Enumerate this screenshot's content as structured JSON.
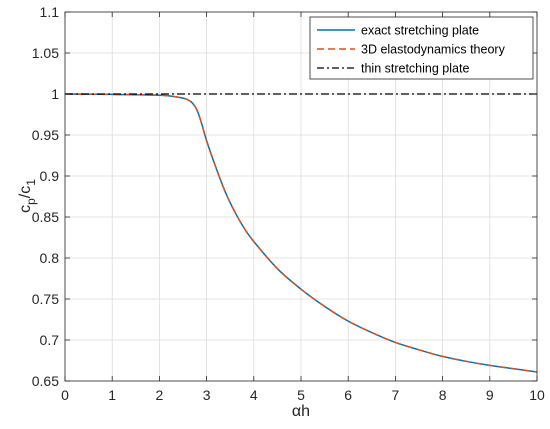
{
  "chart_data": {
    "type": "line",
    "xlabel": "αh",
    "ylabel": {
      "base": "c",
      "sub1": "p",
      "mid": "/c",
      "sub2": "1"
    },
    "xlim": [
      0,
      10
    ],
    "ylim": [
      0.65,
      1.1
    ],
    "xticks": [
      0,
      1,
      2,
      3,
      4,
      5,
      6,
      7,
      8,
      9,
      10
    ],
    "yticks": [
      0.65,
      0.7,
      0.75,
      0.8,
      0.85,
      0.9,
      0.95,
      1,
      1.05,
      1.1
    ],
    "xtick_labels": [
      "0",
      "1",
      "2",
      "3",
      "4",
      "5",
      "6",
      "7",
      "8",
      "9",
      "10"
    ],
    "ytick_labels": [
      "0.65",
      "0.7",
      "0.75",
      "0.8",
      "0.85",
      "0.9",
      "0.95",
      "1",
      "1.05",
      "1.1"
    ],
    "grid": true,
    "legend_position": "top-right",
    "series": [
      {
        "name": "exact stretching plate",
        "color": "#0072BD",
        "style": "solid",
        "x": [
          0,
          1,
          2,
          2.3,
          2.5,
          2.6,
          2.7,
          2.8,
          2.9,
          3,
          3.2,
          3.4,
          3.6,
          3.8,
          4,
          4.5,
          5,
          5.5,
          6,
          6.5,
          7,
          7.5,
          8,
          8.5,
          9,
          9.5,
          10
        ],
        "y": [
          1.0,
          0.9995,
          0.9985,
          0.997,
          0.995,
          0.993,
          0.989,
          0.98,
          0.963,
          0.943,
          0.91,
          0.88,
          0.856,
          0.836,
          0.82,
          0.787,
          0.762,
          0.741,
          0.723,
          0.709,
          0.697,
          0.688,
          0.68,
          0.674,
          0.669,
          0.665,
          0.661
        ]
      },
      {
        "name": "3D elastodynamics theory",
        "color": "#D95319",
        "style": "dashed",
        "x": [
          0,
          1,
          2,
          2.3,
          2.5,
          2.6,
          2.7,
          2.8,
          2.9,
          3,
          3.2,
          3.4,
          3.6,
          3.8,
          4,
          4.5,
          5,
          5.5,
          6,
          6.5,
          7,
          7.5,
          8,
          8.5,
          9,
          9.5,
          10
        ],
        "y": [
          1.0,
          0.9995,
          0.9985,
          0.997,
          0.995,
          0.993,
          0.989,
          0.98,
          0.963,
          0.943,
          0.91,
          0.88,
          0.856,
          0.836,
          0.82,
          0.787,
          0.762,
          0.741,
          0.723,
          0.709,
          0.697,
          0.688,
          0.68,
          0.674,
          0.669,
          0.665,
          0.661
        ]
      },
      {
        "name": "thin stretching plate",
        "color": "#000000",
        "style": "dashdot",
        "x": [
          0,
          10
        ],
        "y": [
          1.0,
          1.0
        ]
      }
    ]
  }
}
